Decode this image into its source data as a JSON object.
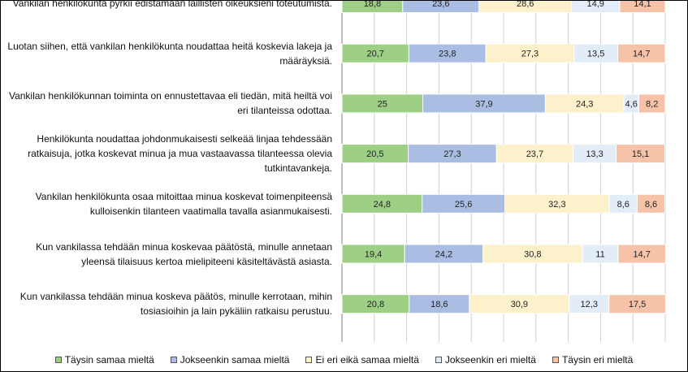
{
  "chart_data": {
    "type": "bar",
    "orientation": "horizontal",
    "stacked": true,
    "normalized_100": true,
    "categories": [
      "Vankilan henkilökunta pyrkii edistämään laillisten oikeuksieni toteutumista.",
      "Luotan siihen, että vankilan henkilökunta noudattaa heitä koskevia lakeja ja määräyksiä.",
      "Vankilan henkilökunnan toiminta on ennustettavaa eli tiedän, mitä heiltä voi eri tilanteissa odottaa.",
      "Henkilökunta noudattaa johdonmukaisesti selkeää linjaa tehdessään ratkaisuja, jotka koskevat minua ja mua vastaavassa tilanteessa olevia tutkintavankeja.",
      "Vankilan henkilökunta osaa mitoittaa minua koskevat toimenpiteensä kulloisenkin tilanteen vaatimalla tavalla asianmukaisesti.",
      "Kun vankilassa tehdään minua koskevaa päätöstä, minulle annetaan yleensä tilaisuus kertoa mielipiteeni käsiteltävästä asiasta.",
      "Kun vankilassa tehdään minua koskeva päätös, minulle kerrotaan, mihin tosiasioihin ja lain pykäliin ratkaisu perustuu."
    ],
    "series": [
      {
        "name": "Täysin samaa mieltä",
        "color": "#9dcf85",
        "values": [
          18.8,
          20.7,
          25,
          20.5,
          24.8,
          19.4,
          20.8
        ],
        "labels": [
          "18,8",
          "20,7",
          "25",
          "20,5",
          "24,8",
          "19,4",
          "20,8"
        ]
      },
      {
        "name": "Jokseenkin samaa mieltä",
        "color": "#aabde3",
        "values": [
          23.6,
          23.8,
          37.9,
          27.3,
          25.6,
          24.2,
          18.6
        ],
        "labels": [
          "23,6",
          "23,8",
          "37,9",
          "27,3",
          "25,6",
          "24,2",
          "18,6"
        ]
      },
      {
        "name": "Ei eri eikä samaa mieltä",
        "color": "#fdf1cc",
        "values": [
          28.6,
          27.3,
          24.3,
          23.7,
          32.3,
          30.8,
          30.9
        ],
        "labels": [
          "28,6",
          "27,3",
          "24,3",
          "23,7",
          "32,3",
          "30,8",
          "30,9"
        ]
      },
      {
        "name": "Jokseenkin eri mieltä",
        "color": "#e3edf8",
        "values": [
          14.9,
          13.5,
          4.6,
          13.3,
          8.6,
          11,
          12.3
        ],
        "labels": [
          "14,9",
          "13,5",
          "4,6",
          "13,3",
          "8,6",
          "11",
          "12,3"
        ]
      },
      {
        "name": "Täysin eri mieltä",
        "color": "#f6c3a9",
        "values": [
          14.1,
          14.7,
          8.2,
          15.1,
          8.6,
          14.7,
          17.5
        ],
        "labels": [
          "14,1",
          "14,7",
          "8,2",
          "15,1",
          "8,6",
          "14,7",
          "17,5"
        ]
      }
    ],
    "xlim": [
      0,
      100
    ],
    "grid": "vertical",
    "legend": "bottom"
  }
}
